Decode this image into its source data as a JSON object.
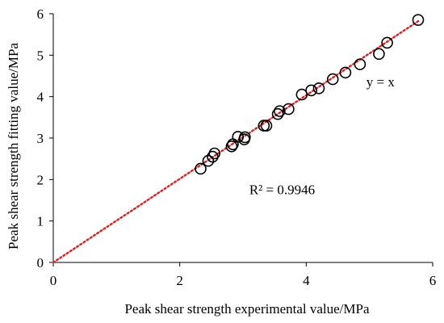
{
  "chart_data": {
    "type": "scatter",
    "title": "",
    "xlabel": "Peak shear strength experimental value/MPa",
    "ylabel": "Peak shear strength fitting value/MPa",
    "xlim": [
      0,
      6
    ],
    "ylim": [
      0,
      6
    ],
    "xticks": [
      "0",
      "2",
      "4",
      "6"
    ],
    "yticks": [
      "0",
      "1",
      "2",
      "3",
      "4",
      "5",
      "6"
    ],
    "grid": false,
    "legend": "none",
    "marker": "open-circle",
    "marker_color": "#000000",
    "trendline": {
      "type": "linear",
      "style": "dotted",
      "color": "#e02020",
      "from": [
        0,
        0
      ],
      "to": [
        5.8,
        5.85
      ]
    },
    "annotations": [
      {
        "text": "y = x",
        "x": 4.95,
        "y": 4.25
      },
      {
        "text": "R² = 0.9946",
        "x": 3.1,
        "y": 1.65
      }
    ],
    "series": [
      {
        "x": [
          2.33,
          2.45,
          2.52,
          2.55,
          2.82,
          2.84,
          2.92,
          3.02,
          3.03,
          3.33,
          3.37,
          3.55,
          3.58,
          3.72,
          3.93,
          4.08,
          4.2,
          4.42,
          4.62,
          4.85,
          5.15,
          5.28,
          5.77
        ],
        "y": [
          2.26,
          2.45,
          2.55,
          2.63,
          2.8,
          2.85,
          3.03,
          2.97,
          3.02,
          3.3,
          3.3,
          3.58,
          3.65,
          3.7,
          4.05,
          4.15,
          4.2,
          4.42,
          4.58,
          4.78,
          5.03,
          5.3,
          5.85
        ]
      }
    ]
  }
}
